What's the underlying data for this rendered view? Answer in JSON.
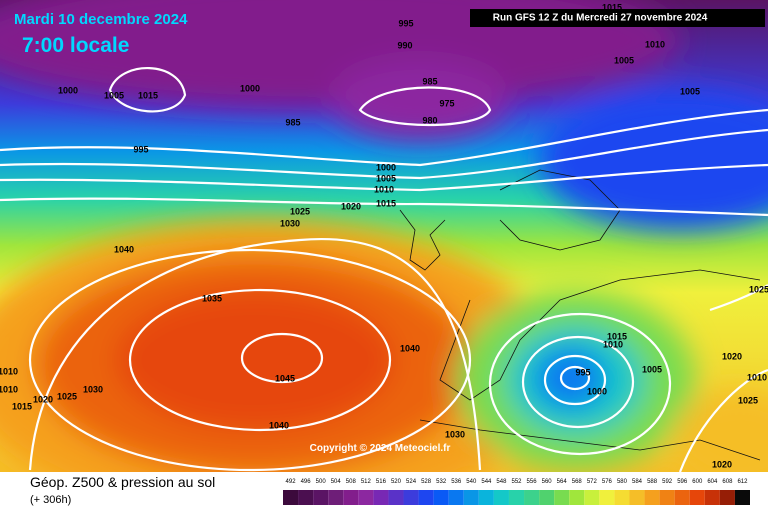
{
  "header": {
    "date": "Mardi 10 decembre 2024",
    "time": "7:00 locale",
    "run": "Run GFS 12 Z du Mercredi 27 novembre 2024",
    "copyright": "Copyright © 2024 Meteociel.fr"
  },
  "footer": {
    "title": "Géop. Z500 & pression au sol",
    "lead": "(+ 306h)"
  },
  "isobar_labels": [
    "995",
    "990",
    "1010",
    "1005",
    "1015",
    "1000",
    "1005",
    "1015",
    "1000",
    "985",
    "975",
    "980",
    "985",
    "995",
    "1005",
    "1000",
    "1005",
    "1010",
    "1015",
    "1020",
    "1025",
    "1030",
    "1040",
    "1035",
    "1040",
    "1045",
    "1040",
    "1030",
    "1025",
    "1020",
    "1015",
    "1010",
    "1010",
    "1030",
    "1015",
    "1010",
    "995",
    "1000",
    "1005",
    "1020",
    "1025",
    "1020",
    "1025",
    "1010"
  ],
  "scale": {
    "values": [
      492,
      496,
      500,
      504,
      508,
      512,
      516,
      520,
      524,
      528,
      532,
      536,
      540,
      544,
      548,
      552,
      556,
      560,
      564,
      568,
      572,
      576,
      580,
      584,
      588,
      592,
      596,
      600,
      604,
      608,
      612
    ],
    "colors": [
      "#3c0a3c",
      "#4b0f50",
      "#5a1464",
      "#6e1e78",
      "#821e8c",
      "#8c28a0",
      "#7828b4",
      "#5a32c8",
      "#3c3cdc",
      "#1e46f0",
      "#0a5af5",
      "#0a78f0",
      "#0a96e6",
      "#0ab4dc",
      "#14c8c8",
      "#28d2aa",
      "#3cd28c",
      "#50d26e",
      "#78dc50",
      "#a0e63c",
      "#c8f03c",
      "#f0f03c",
      "#f5dc32",
      "#f5be28",
      "#f5a01e",
      "#f08214",
      "#eb640f",
      "#e6460a",
      "#c83208",
      "#961e06",
      "#0a0a0a"
    ]
  }
}
